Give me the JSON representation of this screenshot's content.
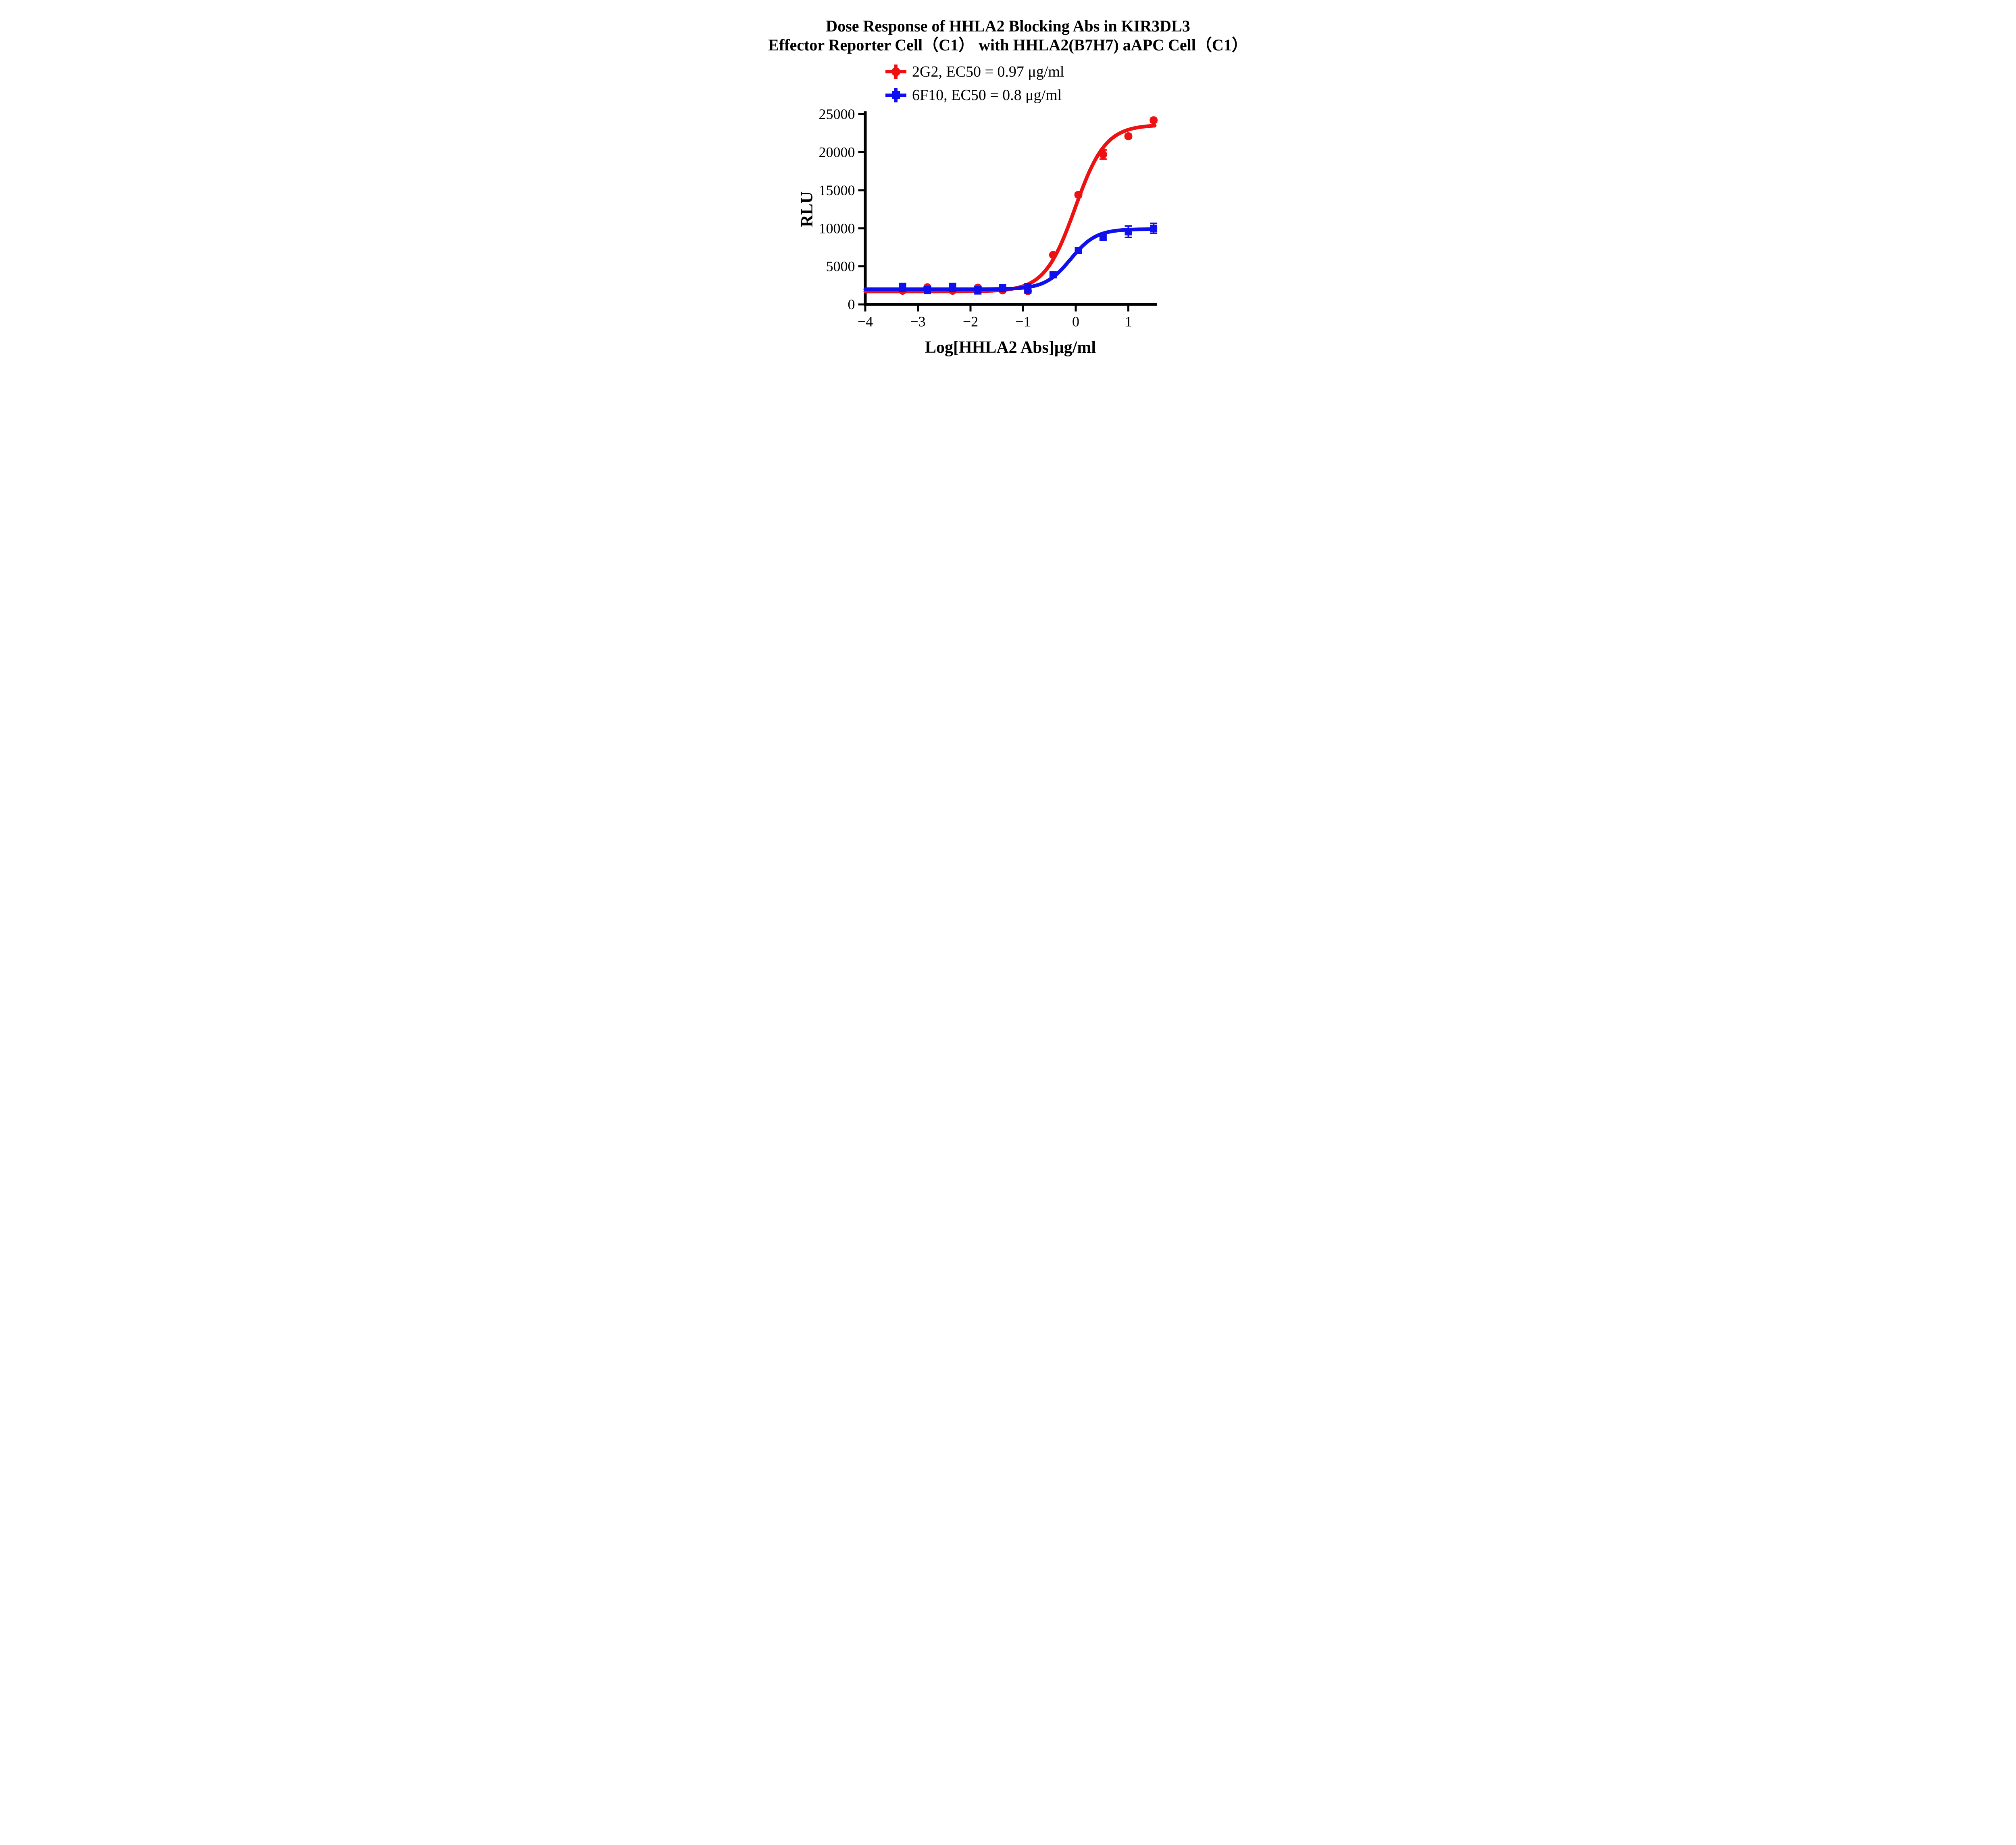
{
  "chart_data": {
    "type": "line",
    "title": "Dose Response of HHLA2 Blocking Abs in KIR3DL3 Effector Reporter Cell（C1） with HHLA2(B7H7) aAPC Cell（C1）",
    "title_line1": "Dose Response of HHLA2 Blocking Abs in KIR3DL3",
    "title_line2": "Effector Reporter Cell（C1） with HHLA2(B7H7) aAPC Cell（C1）",
    "xlabel": "Log[HHLA2 Abs]μg/ml",
    "ylabel": "RLU",
    "grid": false,
    "legend_position": "top-center",
    "xlim": [
      -4,
      1.54
    ],
    "ylim": [
      0,
      25000
    ],
    "x_tick_values": [
      -4,
      -3,
      -2,
      -1,
      0,
      1
    ],
    "x_tick_labels": [
      "−4",
      "−3",
      "−2",
      "−1",
      "0",
      "1"
    ],
    "y_tick_values": [
      0,
      5000,
      10000,
      15000,
      20000,
      25000
    ],
    "y_tick_labels": [
      "0",
      "5000",
      "10000",
      "15000",
      "20000",
      "25000"
    ],
    "x_values_log": [
      -3.29,
      -2.82,
      -2.34,
      -1.86,
      -1.39,
      -0.91,
      -0.43,
      0.05,
      0.52,
      1.0,
      1.48
    ],
    "series": [
      {
        "name": "2G2, EC50 = 0.97 μg/ml",
        "antibody": "2G2",
        "ec50_ug_ml": 0.97,
        "color": "#EE1111",
        "marker": "circle",
        "x": [
          -3.29,
          -2.82,
          -2.34,
          -1.86,
          -1.39,
          -0.91,
          -0.43,
          0.05,
          0.52,
          1.0,
          1.48
        ],
        "y": [
          1800,
          2250,
          1800,
          2200,
          1850,
          1750,
          6500,
          14400,
          19700,
          22100,
          24200
        ],
        "err": [
          150,
          150,
          150,
          150,
          150,
          150,
          200,
          250,
          600,
          250,
          250
        ],
        "fit": {
          "bottom": 1700,
          "top": 23600,
          "logec50": -0.013,
          "hill": 1.5
        }
      },
      {
        "name": "6F10, EC50 = 0.8 μg/ml",
        "antibody": "6F10",
        "ec50_ug_ml": 0.8,
        "color": "#1010EE",
        "marker": "square",
        "x": [
          -3.29,
          -2.82,
          -2.34,
          -1.86,
          -1.39,
          -0.91,
          -0.43,
          0.05,
          0.52,
          1.0,
          1.48
        ],
        "y": [
          2250,
          1900,
          2250,
          1850,
          2150,
          2100,
          3900,
          7100,
          8800,
          9550,
          10000
        ],
        "err": [
          500,
          450,
          500,
          450,
          400,
          600,
          200,
          200,
          250,
          750,
          650
        ],
        "fit": {
          "bottom": 2000,
          "top": 9900,
          "logec50": -0.097,
          "hill": 1.8
        }
      }
    ]
  }
}
